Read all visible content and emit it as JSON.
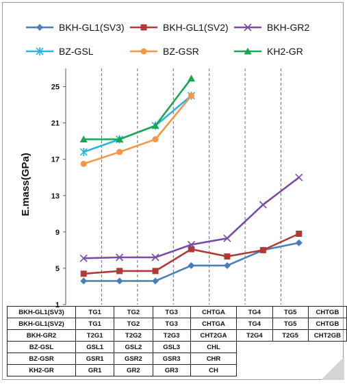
{
  "chart_data": {
    "type": "line",
    "ylabel": "E.mass(GPa)",
    "ylim": [
      1,
      27
    ],
    "yticks": [
      1,
      5,
      9,
      13,
      17,
      21,
      25
    ],
    "x_count": 7,
    "grid": "vertical dashed",
    "legend_position": "top",
    "series": [
      {
        "name": "BKH-GL1(SV3)",
        "color": "#4a7ebb",
        "marker": "diamond",
        "x": [
          1,
          2,
          3,
          4,
          5,
          6,
          7
        ],
        "values": [
          3.6,
          3.6,
          3.6,
          5.3,
          5.3,
          7.0,
          7.8
        ]
      },
      {
        "name": "BKH-GL1(SV2)",
        "color": "#b03a36",
        "marker": "square",
        "x": [
          1,
          2,
          3,
          4,
          5,
          6,
          7
        ],
        "values": [
          4.4,
          4.7,
          4.7,
          7.1,
          6.3,
          7.0,
          8.8
        ]
      },
      {
        "name": "BKH-GR2",
        "color": "#7a4aa8",
        "marker": "x",
        "x": [
          1,
          2,
          3,
          4,
          5,
          6,
          7
        ],
        "values": [
          6.1,
          6.2,
          6.2,
          7.6,
          8.3,
          12.0,
          15.0
        ]
      },
      {
        "name": "BZ-GSL",
        "color": "#27b4e6",
        "marker": "star",
        "x": [
          1,
          2,
          3,
          4
        ],
        "values": [
          17.8,
          19.2,
          20.7,
          24.0
        ]
      },
      {
        "name": "BZ-GSR",
        "color": "#f79646",
        "marker": "circle",
        "x": [
          1,
          2,
          3,
          4
        ],
        "values": [
          16.5,
          17.8,
          19.2,
          24.0
        ]
      },
      {
        "name": "KH2-GR",
        "color": "#1aa653",
        "marker": "triangle",
        "x": [
          1,
          2,
          3,
          4
        ],
        "values": [
          19.2,
          19.2,
          20.7,
          25.9
        ]
      }
    ]
  },
  "table": {
    "rows": [
      {
        "label": "BKH-GL1(SV3)",
        "cells": [
          "TG1",
          "TG2",
          "TG3",
          "CHTGA",
          "TG4",
          "TG5",
          "CHTGB"
        ]
      },
      {
        "label": "BKH-GL1(SV2)",
        "cells": [
          "TG1",
          "TG2",
          "TG3",
          "CHTGA",
          "TG4",
          "TG5",
          "CHTGB"
        ]
      },
      {
        "label": "BKH-GR2",
        "cells": [
          "T2G1",
          "T2G2",
          "T2G3",
          "CHT2GA",
          "T2G4",
          "T2G5",
          "CHT2GB"
        ]
      },
      {
        "label": "BZ-GSL",
        "cells": [
          "GSL1",
          "GSL2",
          "GSL3",
          "CHL"
        ]
      },
      {
        "label": "BZ-GSR",
        "cells": [
          "GSR1",
          "GSR2",
          "GSR3",
          "CHR"
        ]
      },
      {
        "label": "KH2-GR",
        "cells": [
          "GR1",
          "GR2",
          "GR3",
          "CH"
        ]
      }
    ]
  }
}
